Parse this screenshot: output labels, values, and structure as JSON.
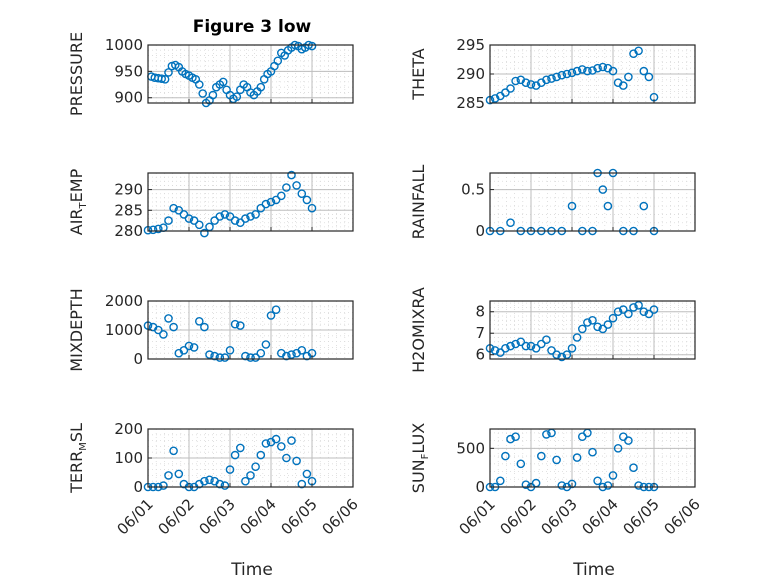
{
  "figure_title": "Figure 3 low",
  "colors": {
    "marker": "#0072BD",
    "axis": "#262626",
    "grid": "#bdbdbd"
  },
  "chart_data": [
    {
      "type": "scatter",
      "ylabel": "PRESSURE",
      "ylim": [
        890,
        1000
      ],
      "yticks": [
        900,
        950,
        1000
      ],
      "xlim": [
        "06/01",
        "06/06"
      ],
      "x": [
        "06/01 02:00",
        "06/01 04:00",
        "06/01 06:00",
        "06/01 08:00",
        "06/01 10:00",
        "06/01 12:00",
        "06/01 14:00",
        "06/01 16:00",
        "06/01 18:00",
        "06/01 20:00",
        "06/01 22:00",
        "06/02 00:00",
        "06/02 02:00",
        "06/02 04:00",
        "06/02 06:00",
        "06/02 08:00",
        "06/02 10:00",
        "06/02 12:00",
        "06/02 14:00",
        "06/02 16:00",
        "06/02 18:00",
        "06/02 20:00",
        "06/02 22:00",
        "06/03 00:00",
        "06/03 02:00",
        "06/03 04:00",
        "06/03 06:00",
        "06/03 08:00",
        "06/03 10:00",
        "06/03 12:00",
        "06/03 14:00",
        "06/03 16:00",
        "06/03 18:00",
        "06/03 20:00",
        "06/03 22:00",
        "06/04 00:00",
        "06/04 02:00",
        "06/04 04:00",
        "06/04 06:00",
        "06/04 08:00",
        "06/04 10:00",
        "06/04 12:00",
        "06/04 14:00",
        "06/04 16:00",
        "06/04 18:00",
        "06/04 20:00",
        "06/04 22:00",
        "06/05 00:00"
      ],
      "y": [
        940,
        938,
        937,
        936,
        935,
        948,
        960,
        962,
        958,
        950,
        945,
        942,
        938,
        935,
        925,
        908,
        890,
        895,
        905,
        920,
        925,
        930,
        915,
        905,
        898,
        902,
        915,
        925,
        920,
        910,
        905,
        912,
        920,
        935,
        945,
        950,
        960,
        970,
        985,
        980,
        990,
        995,
        1000,
        998,
        992,
        995,
        1000,
        998
      ]
    },
    {
      "type": "scatter",
      "ylabel": "THETA",
      "ylim": [
        285,
        295
      ],
      "yticks": [
        285,
        290,
        295
      ],
      "xlim": [
        "06/01",
        "06/06"
      ],
      "x": [
        "06/01 00:00",
        "06/01 03:00",
        "06/01 06:00",
        "06/01 09:00",
        "06/01 12:00",
        "06/01 15:00",
        "06/01 18:00",
        "06/01 21:00",
        "06/02 00:00",
        "06/02 03:00",
        "06/02 06:00",
        "06/02 09:00",
        "06/02 12:00",
        "06/02 15:00",
        "06/02 18:00",
        "06/02 21:00",
        "06/03 00:00",
        "06/03 03:00",
        "06/03 06:00",
        "06/03 09:00",
        "06/03 12:00",
        "06/03 15:00",
        "06/03 18:00",
        "06/03 21:00",
        "06/04 00:00",
        "06/04 03:00",
        "06/04 06:00",
        "06/04 09:00",
        "06/04 12:00",
        "06/04 15:00",
        "06/04 18:00",
        "06/04 21:00",
        "06/05 00:00"
      ],
      "y": [
        285.5,
        285.8,
        286.2,
        286.8,
        287.5,
        288.8,
        289.0,
        288.5,
        288.2,
        288.0,
        288.5,
        289.0,
        289.2,
        289.5,
        289.8,
        290.0,
        290.2,
        290.5,
        290.8,
        290.5,
        290.6,
        291.0,
        291.2,
        291.0,
        290.5,
        288.5,
        288.0,
        289.5,
        293.5,
        294.0,
        290.5,
        289.5,
        286.0
      ]
    },
    {
      "type": "scatter",
      "ylabel": "AIR_TEMP",
      "ylim": [
        280,
        294
      ],
      "yticks": [
        280,
        285,
        290
      ],
      "xlim": [
        "06/01",
        "06/06"
      ],
      "x": [
        "06/01 00:00",
        "06/01 03:00",
        "06/01 06:00",
        "06/01 09:00",
        "06/01 12:00",
        "06/01 15:00",
        "06/01 18:00",
        "06/01 21:00",
        "06/02 00:00",
        "06/02 03:00",
        "06/02 06:00",
        "06/02 09:00",
        "06/02 12:00",
        "06/02 15:00",
        "06/02 18:00",
        "06/02 21:00",
        "06/03 00:00",
        "06/03 03:00",
        "06/03 06:00",
        "06/03 09:00",
        "06/03 12:00",
        "06/03 15:00",
        "06/03 18:00",
        "06/03 21:00",
        "06/04 00:00",
        "06/04 03:00",
        "06/04 06:00",
        "06/04 09:00",
        "06/04 12:00",
        "06/04 15:00",
        "06/04 18:00",
        "06/04 21:00",
        "06/05 00:00"
      ],
      "y": [
        280.2,
        280.3,
        280.5,
        280.8,
        282.5,
        285.5,
        285.0,
        284.0,
        283.0,
        282.5,
        281.5,
        279.5,
        281.0,
        282.5,
        283.5,
        284.0,
        283.5,
        282.5,
        282.0,
        283.0,
        283.5,
        284.0,
        285.5,
        286.5,
        287.0,
        287.5,
        288.5,
        290.5,
        293.5,
        291.0,
        289.0,
        287.5,
        285.5
      ]
    },
    {
      "type": "scatter",
      "ylabel": "RAINFALL",
      "ylim": [
        0,
        0.7
      ],
      "yticks": [
        0,
        0.5
      ],
      "xlim": [
        "06/01",
        "06/06"
      ],
      "x": [
        "06/01 00:00",
        "06/01 06:00",
        "06/01 12:00",
        "06/01 18:00",
        "06/02 00:00",
        "06/02 06:00",
        "06/02 12:00",
        "06/02 18:00",
        "06/03 00:00",
        "06/03 06:00",
        "06/03 12:00",
        "06/03 15:00",
        "06/03 18:00",
        "06/03 21:00",
        "06/04 00:00",
        "06/04 06:00",
        "06/04 12:00",
        "06/04 18:00",
        "06/05 00:00"
      ],
      "y": [
        0,
        0,
        0.1,
        0,
        0,
        0,
        0,
        0,
        0.3,
        0,
        0,
        0.7,
        0.5,
        0.3,
        0.7,
        0,
        0,
        0.3,
        0
      ]
    },
    {
      "type": "scatter",
      "ylabel": "MIXDEPTH",
      "ylim": [
        0,
        2000
      ],
      "yticks": [
        0,
        1000,
        2000
      ],
      "xlim": [
        "06/01",
        "06/06"
      ],
      "x": [
        "06/01 00:00",
        "06/01 03:00",
        "06/01 06:00",
        "06/01 09:00",
        "06/01 12:00",
        "06/01 15:00",
        "06/01 18:00",
        "06/01 21:00",
        "06/02 00:00",
        "06/02 03:00",
        "06/02 06:00",
        "06/02 09:00",
        "06/02 12:00",
        "06/02 15:00",
        "06/02 18:00",
        "06/02 21:00",
        "06/03 00:00",
        "06/03 03:00",
        "06/03 06:00",
        "06/03 09:00",
        "06/03 12:00",
        "06/03 15:00",
        "06/03 18:00",
        "06/03 21:00",
        "06/04 00:00",
        "06/04 03:00",
        "06/04 06:00",
        "06/04 09:00",
        "06/04 12:00",
        "06/04 15:00",
        "06/04 18:00",
        "06/04 21:00",
        "06/05 00:00"
      ],
      "y": [
        1150,
        1100,
        1000,
        850,
        1400,
        1100,
        200,
        300,
        450,
        400,
        1300,
        1100,
        150,
        100,
        50,
        50,
        300,
        1200,
        1150,
        100,
        50,
        50,
        200,
        500,
        1500,
        1700,
        200,
        100,
        150,
        200,
        300,
        100,
        200
      ]
    },
    {
      "type": "scatter",
      "ylabel": "H2OMIXRA",
      "ylim": [
        5.8,
        8.5
      ],
      "yticks": [
        6,
        7,
        8
      ],
      "xlim": [
        "06/01",
        "06/06"
      ],
      "x": [
        "06/01 00:00",
        "06/01 03:00",
        "06/01 06:00",
        "06/01 09:00",
        "06/01 12:00",
        "06/01 15:00",
        "06/01 18:00",
        "06/01 21:00",
        "06/02 00:00",
        "06/02 03:00",
        "06/02 06:00",
        "06/02 09:00",
        "06/02 12:00",
        "06/02 15:00",
        "06/02 18:00",
        "06/02 21:00",
        "06/03 00:00",
        "06/03 03:00",
        "06/03 06:00",
        "06/03 09:00",
        "06/03 12:00",
        "06/03 15:00",
        "06/03 18:00",
        "06/03 21:00",
        "06/04 00:00",
        "06/04 03:00",
        "06/04 06:00",
        "06/04 09:00",
        "06/04 12:00",
        "06/04 15:00",
        "06/04 18:00",
        "06/04 21:00",
        "06/05 00:00"
      ],
      "y": [
        6.3,
        6.2,
        6.1,
        6.3,
        6.4,
        6.5,
        6.6,
        6.4,
        6.4,
        6.3,
        6.5,
        6.7,
        6.2,
        6.0,
        5.9,
        6.0,
        6.3,
        6.8,
        7.2,
        7.5,
        7.6,
        7.3,
        7.2,
        7.4,
        7.7,
        8.0,
        8.1,
        7.9,
        8.2,
        8.3,
        8.0,
        7.9,
        8.1
      ]
    },
    {
      "type": "scatter",
      "ylabel": "TERR_MSL",
      "ylim": [
        0,
        200
      ],
      "yticks": [
        0,
        100,
        200
      ],
      "xlim": [
        "06/01",
        "06/06"
      ],
      "x": [
        "06/01 00:00",
        "06/01 03:00",
        "06/01 06:00",
        "06/01 09:00",
        "06/01 12:00",
        "06/01 15:00",
        "06/01 18:00",
        "06/01 21:00",
        "06/02 00:00",
        "06/02 03:00",
        "06/02 06:00",
        "06/02 09:00",
        "06/02 12:00",
        "06/02 15:00",
        "06/02 18:00",
        "06/02 21:00",
        "06/03 00:00",
        "06/03 03:00",
        "06/03 06:00",
        "06/03 09:00",
        "06/03 12:00",
        "06/03 15:00",
        "06/03 18:00",
        "06/03 21:00",
        "06/04 00:00",
        "06/04 03:00",
        "06/04 06:00",
        "06/04 09:00",
        "06/04 12:00",
        "06/04 15:00",
        "06/04 18:00",
        "06/04 21:00",
        "06/05 00:00"
      ],
      "y": [
        0,
        0,
        0,
        5,
        40,
        125,
        45,
        10,
        0,
        0,
        10,
        20,
        25,
        20,
        10,
        5,
        60,
        110,
        135,
        20,
        40,
        70,
        110,
        150,
        155,
        165,
        140,
        100,
        160,
        90,
        10,
        45,
        20
      ]
    },
    {
      "type": "scatter",
      "ylabel": "SUN_FLUX",
      "ylim": [
        0,
        750
      ],
      "yticks": [
        0,
        500
      ],
      "xlim": [
        "06/01",
        "06/06"
      ],
      "x": [
        "06/01 00:00",
        "06/01 03:00",
        "06/01 06:00",
        "06/01 09:00",
        "06/01 12:00",
        "06/01 15:00",
        "06/01 18:00",
        "06/01 21:00",
        "06/02 00:00",
        "06/02 03:00",
        "06/02 06:00",
        "06/02 09:00",
        "06/02 12:00",
        "06/02 15:00",
        "06/02 18:00",
        "06/02 21:00",
        "06/03 00:00",
        "06/03 03:00",
        "06/03 06:00",
        "06/03 09:00",
        "06/03 12:00",
        "06/03 15:00",
        "06/03 18:00",
        "06/03 21:00",
        "06/04 00:00",
        "06/04 03:00",
        "06/04 06:00",
        "06/04 09:00",
        "06/04 12:00",
        "06/04 15:00",
        "06/04 18:00",
        "06/04 21:00",
        "06/05 00:00"
      ],
      "y": [
        0,
        0,
        80,
        400,
        620,
        650,
        300,
        30,
        0,
        50,
        400,
        680,
        700,
        350,
        20,
        0,
        40,
        380,
        650,
        700,
        450,
        80,
        0,
        20,
        150,
        500,
        650,
        600,
        250,
        20,
        0,
        0,
        0
      ]
    }
  ],
  "xticks": [
    "06/01",
    "06/02",
    "06/03",
    "06/04",
    "06/05",
    "06/06"
  ],
  "xlabel": "Time"
}
